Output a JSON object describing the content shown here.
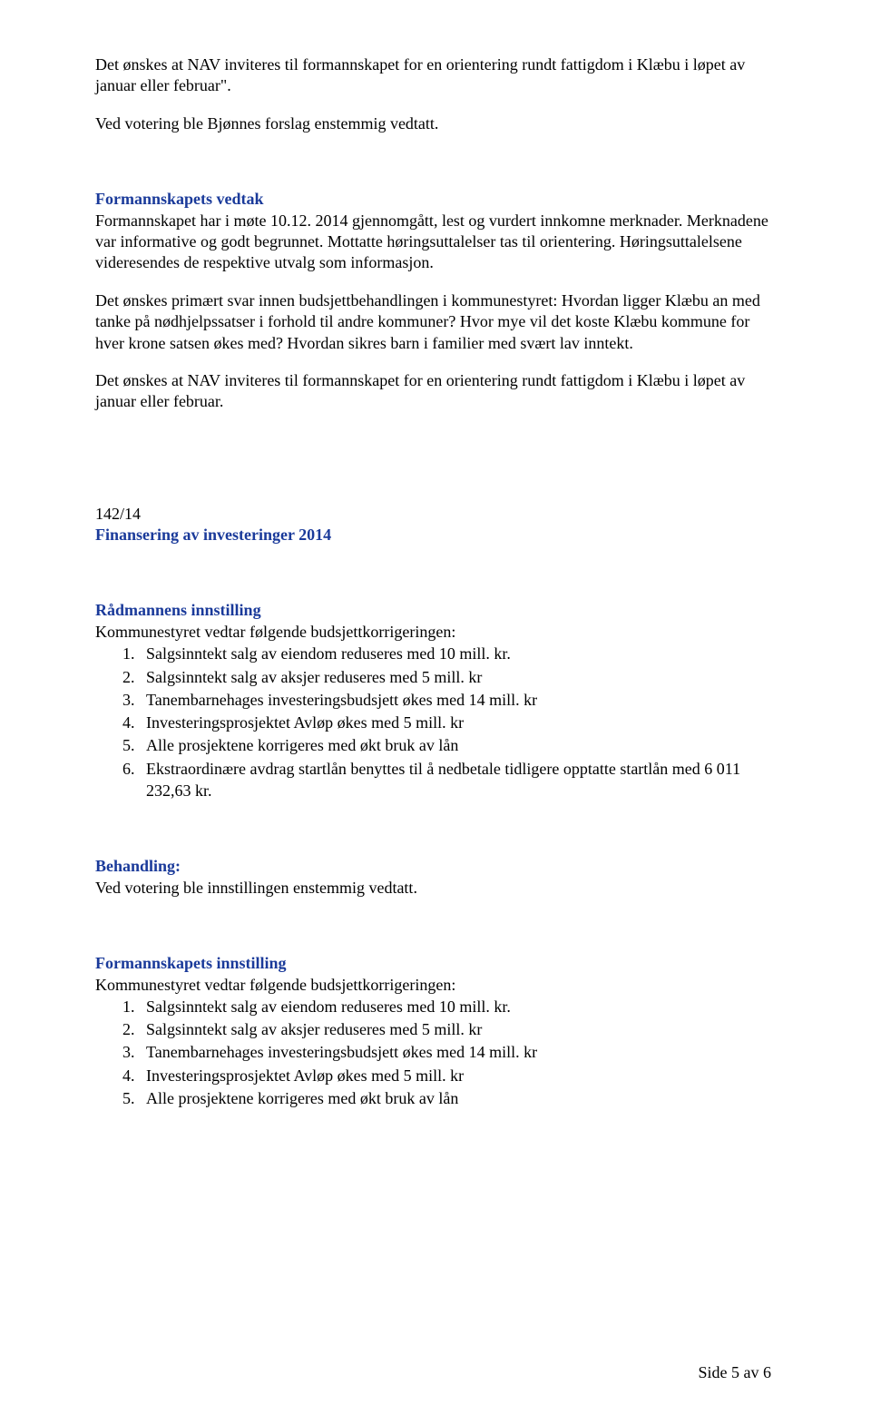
{
  "para1": "Det ønskes at NAV inviteres til formannskapet for en orientering rundt fattigdom i Klæbu i løpet av januar eller februar\".",
  "para2": "Ved votering ble Bjønnes forslag enstemmig vedtatt.",
  "heading1": "Formannskapets vedtak",
  "para3a": "Formannskapet har i møte 10.12. 2014 gjennomgått, lest og vurdert innkomne merknader. Merknadene var informative og godt begrunnet. Mottatte høringsuttalelser tas til orientering. Høringsuttalelsene videresendes de respektive utvalg som informasjon.",
  "para3b": "Det ønskes primært svar innen budsjettbehandlingen i kommunestyret: Hvordan ligger Klæbu an med tanke på nødhjelpssatser i forhold til andre kommuner? Hvor mye vil det koste Klæbu kommune for hver krone satsen økes med? Hvordan sikres barn i familier med svært lav inntekt.",
  "para3c": "Det ønskes at NAV inviteres til formannskapet for en orientering rundt fattigdom i Klæbu i løpet av januar eller februar.",
  "caseNumber": "142/14",
  "caseTitle": "Finansering av investeringer 2014",
  "innstillingHeading": "Rådmannens innstilling",
  "innstillingIntro": "Kommunestyret vedtar følgende budsjettkorrigeringen:",
  "list1": [
    "Salgsinntekt salg av eiendom reduseres med 10 mill. kr.",
    "Salgsinntekt salg av aksjer reduseres med 5 mill. kr",
    "Tanembarnehages investeringsbudsjett økes med 14 mill. kr",
    "Investeringsprosjektet Avløp økes med 5 mill. kr",
    "Alle prosjektene korrigeres med økt bruk av lån",
    "Ekstraordinære avdrag startlån benyttes til å nedbetale tidligere opptatte startlån med 6 011 232,63 kr."
  ],
  "behandlingHeading": "Behandling:",
  "behandlingText": "Ved votering ble innstillingen enstemmig vedtatt.",
  "fsInnstillingHeading": "Formannskapets innstilling",
  "fsInnstillingIntro": "Kommunestyret vedtar følgende budsjettkorrigeringen:",
  "list2": [
    "Salgsinntekt salg av eiendom reduseres med 10 mill. kr.",
    "Salgsinntekt salg av aksjer reduseres med 5 mill. kr",
    "Tanembarnehages investeringsbudsjett økes med 14 mill. kr",
    "Investeringsprosjektet Avløp økes med 5 mill. kr",
    "Alle prosjektene korrigeres med økt bruk av lån"
  ],
  "footer": "Side 5 av 6"
}
